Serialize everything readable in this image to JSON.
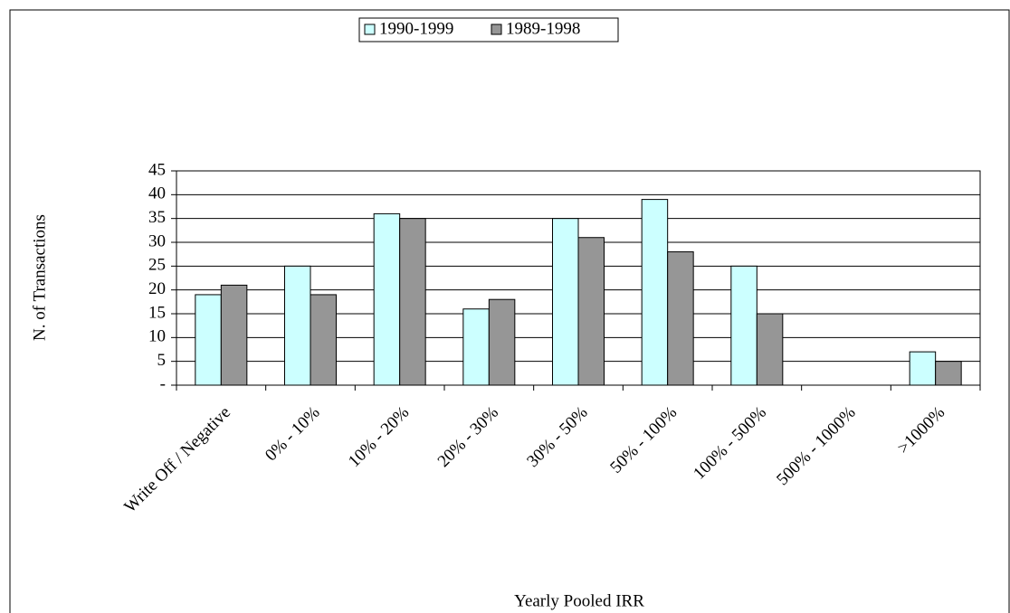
{
  "chart_data": {
    "type": "bar",
    "x_label": "Yearly Pooled IRR",
    "y_label": "N. of Transactions",
    "categories": [
      "Write Off / Negative",
      "0% - 10%",
      "10% - 20%",
      "20% - 30%",
      "30% - 50%",
      "50% - 100%",
      "100% - 500%",
      "500% - 1000%",
      ">1000%"
    ],
    "series": [
      {
        "name": "1990-1999",
        "color": "#ccffff",
        "values": [
          19,
          25,
          36,
          16,
          35,
          39,
          25,
          0,
          7
        ]
      },
      {
        "name": "1989-1998",
        "color": "#969696",
        "values": [
          21,
          19,
          35,
          18,
          31,
          28,
          15,
          0,
          5
        ]
      }
    ],
    "ylim": [
      0,
      45
    ],
    "yticks": [
      {
        "value": 0,
        "label": "-"
      },
      5,
      10,
      15,
      20,
      25,
      30,
      35,
      40,
      45
    ],
    "grid": true,
    "legend": "top"
  }
}
